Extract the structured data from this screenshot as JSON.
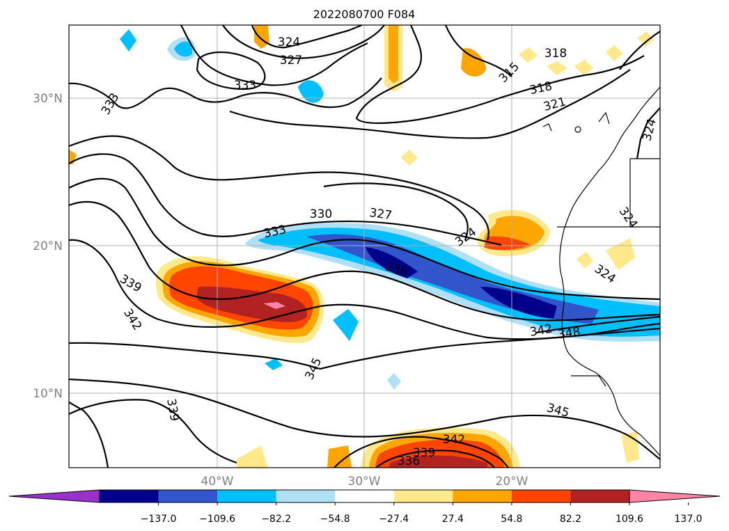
{
  "title": "2022080700 F084",
  "lat_labels": [
    "30°N",
    "20°N",
    "10°N"
  ],
  "lon_labels": [
    "40°W",
    "30°W",
    "20°W"
  ],
  "contour_labels": [
    "324",
    "327",
    "333",
    "333",
    "315",
    "318",
    "318",
    "321",
    "324",
    "324",
    "324",
    "330",
    "327",
    "333",
    "324",
    "336",
    "339",
    "342",
    "345",
    "342",
    "348",
    "339",
    "336",
    "342",
    "339",
    "345"
  ],
  "colorbar": {
    "tick_labels": [
      "−137.0",
      "−109.6",
      "−82.2",
      "−54.8",
      "−27.4",
      "27.4",
      "54.8",
      "82.2",
      "109.6",
      "137.0"
    ],
    "colors": [
      "#9932cc",
      "#00008b",
      "#3355cc",
      "#00bfff",
      "#b0e0f5",
      "#ffffff",
      "#ffe98a",
      "#ffa500",
      "#ff4500",
      "#b22222",
      "#ff85a8"
    ]
  },
  "chart_data": {
    "type": "map",
    "title": "2022080700 F084",
    "lat_ticks": [
      10,
      20,
      30
    ],
    "lon_ticks": [
      -40,
      -30,
      -20
    ],
    "contour_levels": [
      315,
      318,
      321,
      324,
      327,
      330,
      333,
      336,
      339,
      342,
      345,
      348
    ],
    "fill_levels": [
      -137.0,
      -109.6,
      -82.2,
      -54.8,
      -27.4,
      27.4,
      54.8,
      82.2,
      109.6,
      137.0
    ],
    "grid": true
  }
}
